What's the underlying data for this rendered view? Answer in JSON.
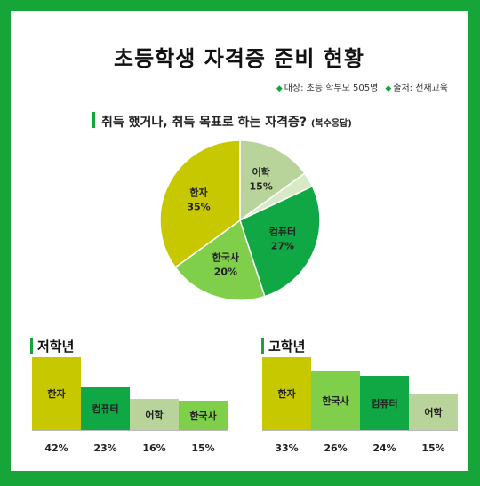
{
  "title": "초등학생 자격증 준비 현황",
  "source": {
    "target": "대상: 초등 학부모 505명",
    "origin": "출처: 천재교육"
  },
  "question": {
    "text": "취득 했거나, 취득 목표로 하는 자격증?",
    "note": "(복수응답)"
  },
  "colors": {
    "frame": "#16a538",
    "hanja": "#c8c800",
    "computer": "#10a845",
    "korean_history": "#7fcf4a",
    "language": "#b8d49a",
    "other": "#d8e9c6"
  },
  "chart_data": [
    {
      "type": "pie",
      "title": "취득 했거나, 취득 목표로 하는 자격증?",
      "slices": [
        {
          "label": "어학",
          "value": 15,
          "display": "15%"
        },
        {
          "label": "",
          "value": 3,
          "display": ""
        },
        {
          "label": "컴퓨터",
          "value": 27,
          "display": "27%"
        },
        {
          "label": "한국사",
          "value": 20,
          "display": "20%"
        },
        {
          "label": "한자",
          "value": 35,
          "display": "35%"
        }
      ]
    },
    {
      "type": "bar",
      "title": "저학년",
      "categories": [
        "한자",
        "컴퓨터",
        "어학",
        "한국사"
      ],
      "values": [
        42,
        23,
        16,
        15
      ],
      "labels": [
        "42%",
        "23%",
        "16%",
        "15%"
      ]
    },
    {
      "type": "bar",
      "title": "고학년",
      "categories": [
        "한자",
        "한국사",
        "컴퓨터",
        "어학"
      ],
      "values": [
        33,
        26,
        24,
        15
      ],
      "labels": [
        "33%",
        "26%",
        "24%",
        "15%"
      ]
    }
  ]
}
